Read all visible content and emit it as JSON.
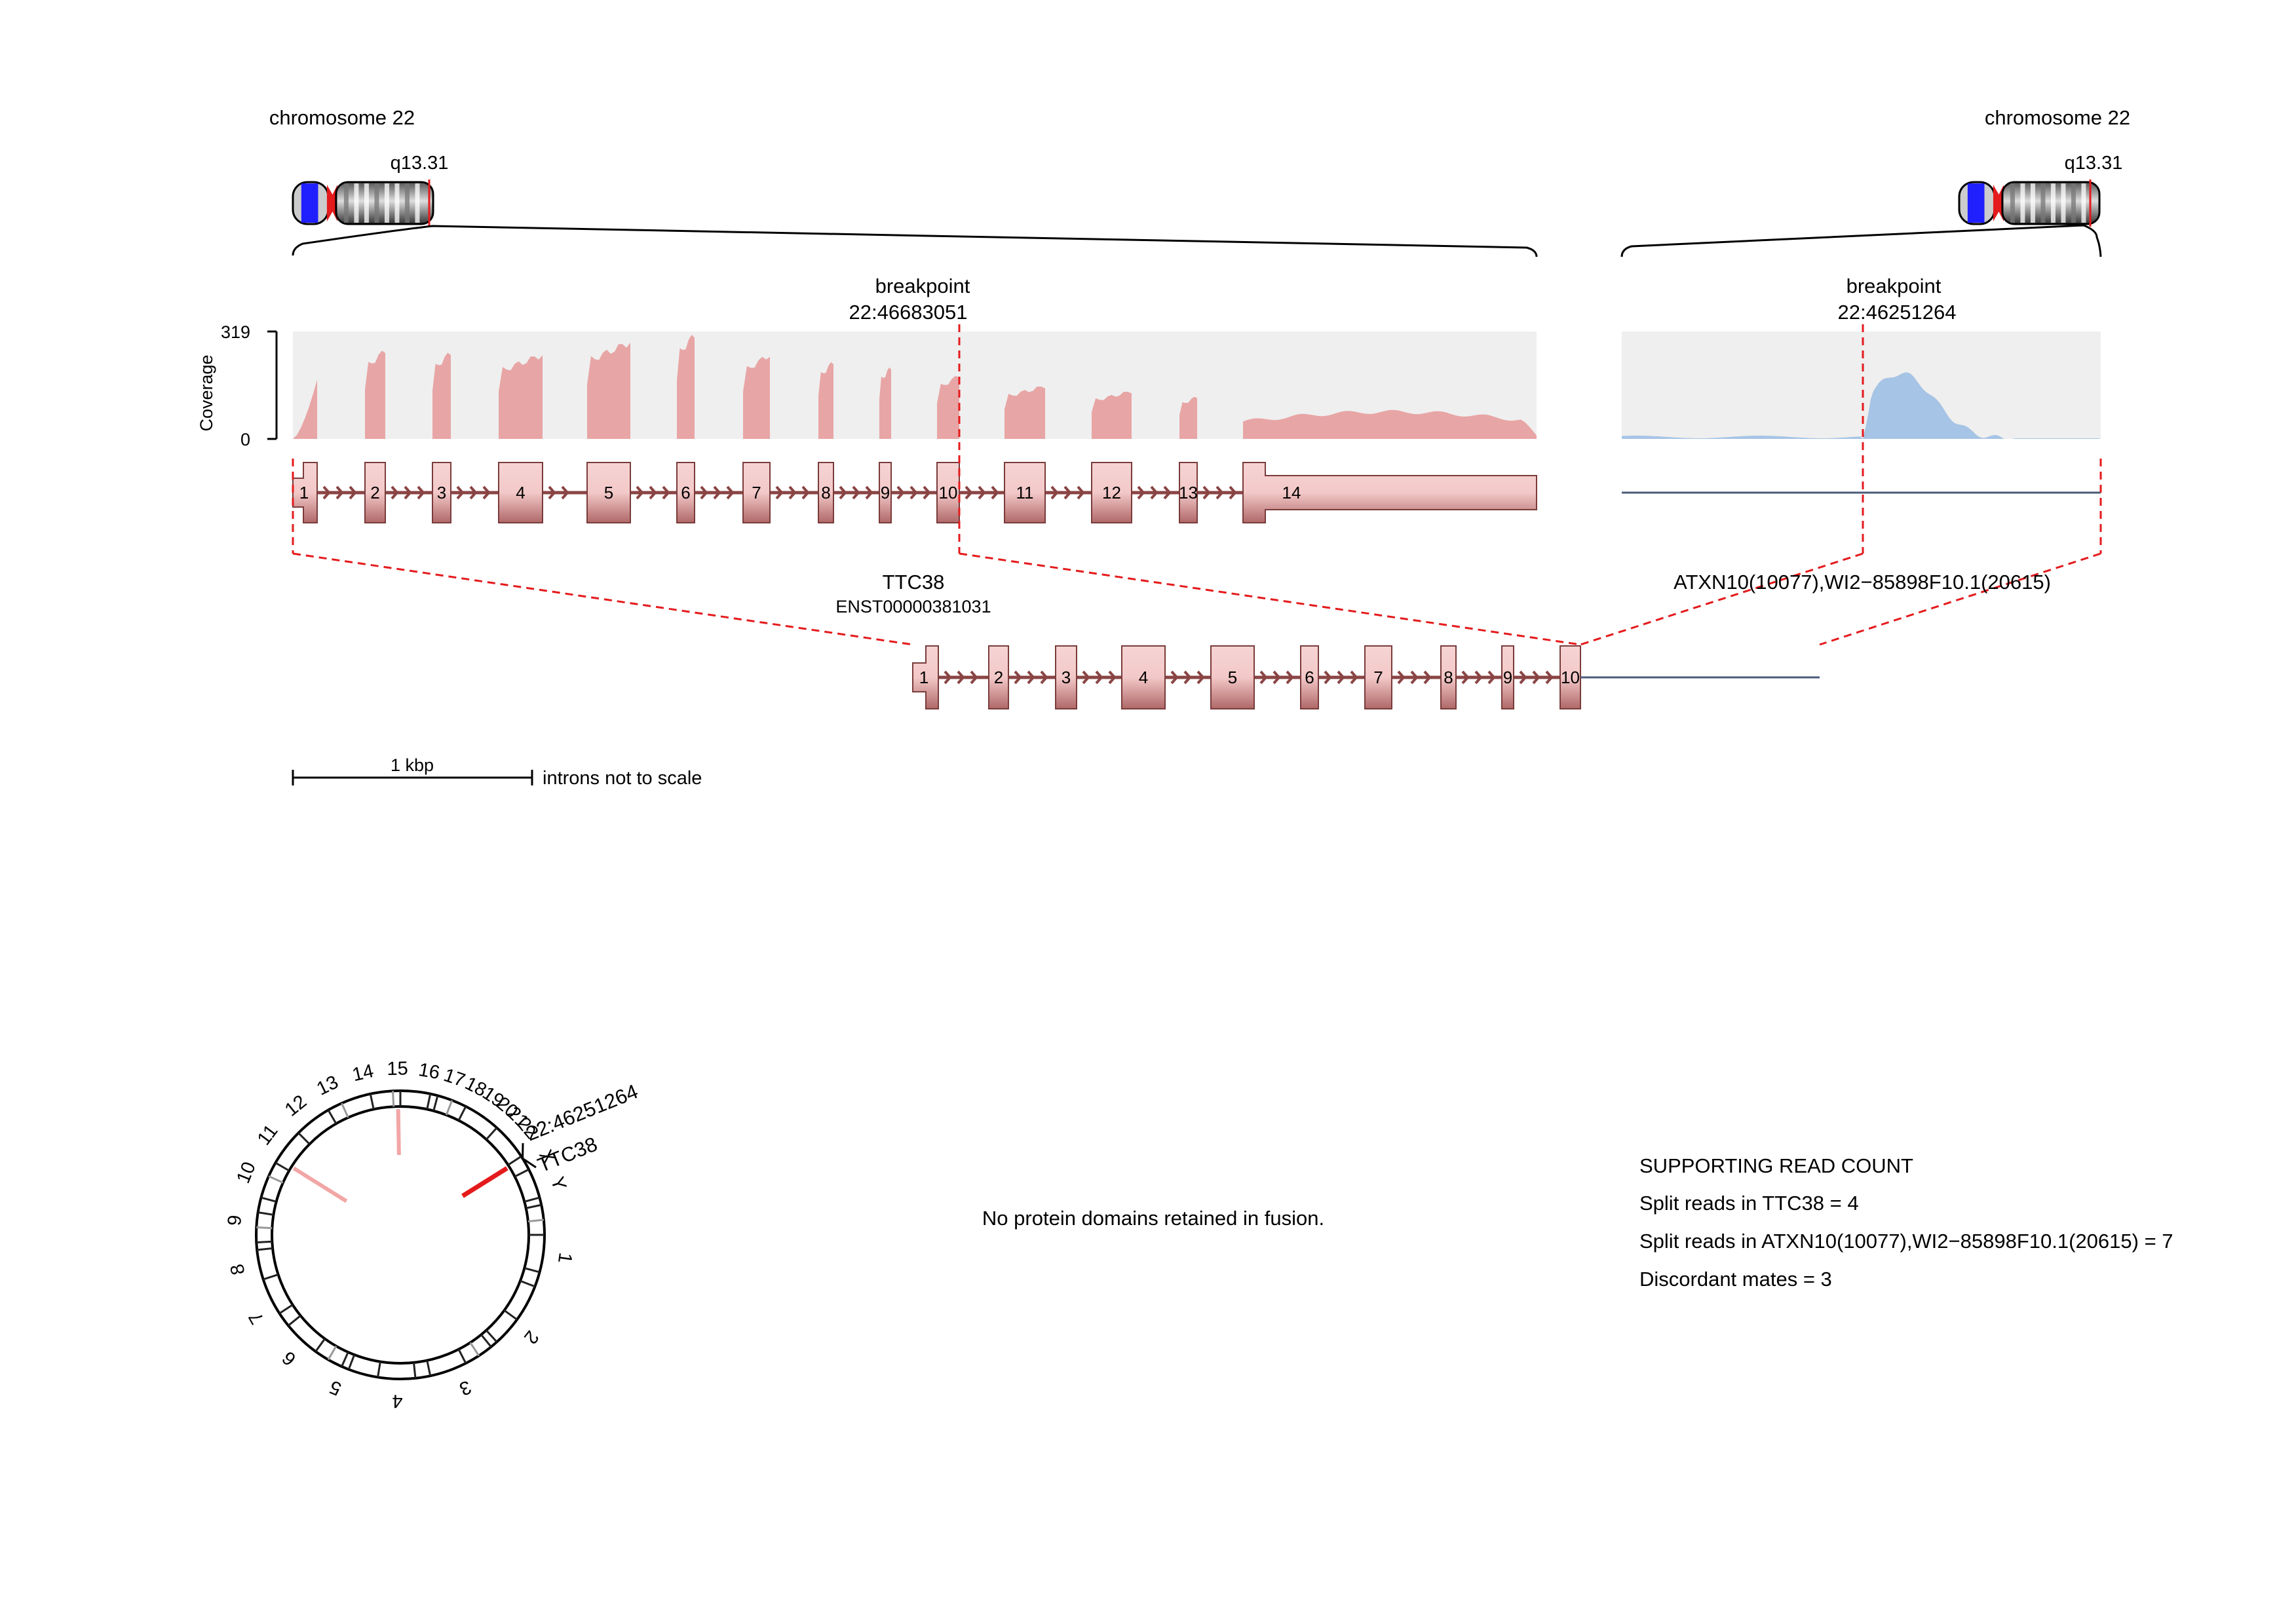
{
  "left_chromosome": {
    "label": "chromosome 22",
    "band": "q13.31"
  },
  "right_chromosome": {
    "label": "chromosome 22",
    "band": "q13.31"
  },
  "left_breakpoint": {
    "label": "breakpoint",
    "position": "22:46683051"
  },
  "right_breakpoint": {
    "label": "breakpoint",
    "position": "22:46251264"
  },
  "coverage": {
    "axis_label": "Coverage",
    "max_tick": "319",
    "min_tick": "0"
  },
  "gene5": {
    "name": "TTC38",
    "transcript": "ENST00000381031",
    "exons": [
      "1",
      "2",
      "3",
      "4",
      "5",
      "6",
      "7",
      "8",
      "9",
      "10",
      "11",
      "12",
      "13",
      "14"
    ]
  },
  "gene3": {
    "name": "ATXN10(10077),WI2−85898F10.1(20615)"
  },
  "fusion": {
    "exons": [
      "1",
      "2",
      "3",
      "4",
      "5",
      "6",
      "7",
      "8",
      "9",
      "10"
    ]
  },
  "scale_bar": {
    "label": "1 kbp",
    "note": "introns not to scale"
  },
  "protein_domains": {
    "text": "No protein domains retained in fusion."
  },
  "read_counts": {
    "title": "SUPPORTING READ COUNT",
    "split_reads_gene5": "Split reads in TTC38 = 4",
    "split_reads_gene3": "Split reads in ATXN10(10077),WI2−85898F10.1(20615) = 7",
    "discordant": "Discordant mates = 3"
  },
  "circos": {
    "chromosomes": [
      "1",
      "2",
      "3",
      "4",
      "5",
      "6",
      "7",
      "8",
      "9",
      "10",
      "11",
      "12",
      "13",
      "14",
      "15",
      "16",
      "17",
      "18",
      "19",
      "20",
      "21",
      "22",
      "X",
      "Y"
    ],
    "label_breakpoint": "22:46251264",
    "label_gene": "TTC38"
  },
  "colors": {
    "gene5": "#e8a5a5",
    "gene3": "#a6c4e5",
    "exon_border": "#7a3b3b",
    "breakpoint": "#e41a1c",
    "coverage_bg": "#efefef",
    "gene3_line": "#4a5a7a"
  }
}
